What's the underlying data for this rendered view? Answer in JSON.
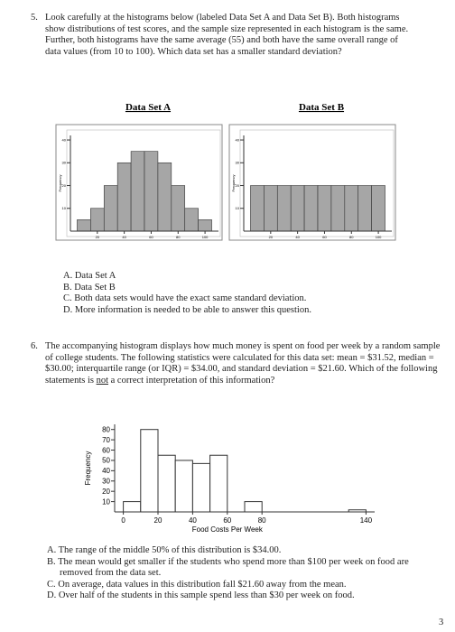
{
  "document": {
    "q5": {
      "number": "5.",
      "text": "Look carefully at the histograms below (labeled Data Set A and Data Set B). Both histograms show distributions of test scores, and the sample size represented in each histogram is the same. Further, both histograms have the same average (55) and both have the same overall range of data values (from 10 to 100). Which data set has a smaller standard deviation?",
      "options": [
        "A. Data Set A",
        "B. Data Set B",
        "C. Both data sets would have the exact same standard deviation.",
        "D. More information is needed to be able to answer this question."
      ]
    },
    "q6": {
      "number": "6.",
      "text_before": "The accompanying histogram displays how much money is spent on food per week by a random sample of college students. The following statistics were calculated for this data set: mean = $31.52, median = $30.00; interquartile range (or IQR) = $34.00, and standard deviation = $21.60. Which of the following statements is ",
      "underlined": "not",
      "text_after": " a correct interpretation of this information?",
      "options": [
        "A. The range of the middle 50% of this distribution is $34.00.",
        "B. The mean would get smaller if the students who spend more than $100 per week on food are removed from the data set.",
        "C. On average, data values in this distribution fall $21.60 away from the mean.",
        "D. Over half of the students in this sample spend less than $30 per week on food."
      ]
    },
    "page_number": "3"
  },
  "chart_data": [
    {
      "type": "histogram",
      "title": "Data Set A",
      "ylabel": "Frequency",
      "bins": [
        5,
        15,
        25,
        35,
        45,
        55,
        65,
        75,
        85,
        95,
        105
      ],
      "values": [
        5,
        10,
        20,
        30,
        35,
        35,
        30,
        20,
        10,
        5
      ],
      "color": "#a6a6a6",
      "xlim": [
        0,
        110
      ],
      "xticks": [
        20,
        40,
        60,
        80,
        100
      ],
      "ylim": [
        0,
        42
      ],
      "yticks": [
        10,
        20,
        30,
        40
      ]
    },
    {
      "type": "histogram",
      "title": "Data Set B",
      "ylabel": "Frequency",
      "bins": [
        5,
        15,
        25,
        35,
        45,
        55,
        65,
        75,
        85,
        95,
        105
      ],
      "values": [
        20,
        20,
        20,
        20,
        20,
        20,
        20,
        20,
        20,
        20
      ],
      "color": "#a6a6a6",
      "xlim": [
        0,
        110
      ],
      "xticks": [
        20,
        40,
        60,
        80,
        100
      ],
      "ylim": [
        0,
        42
      ],
      "yticks": [
        10,
        20,
        30,
        40
      ]
    },
    {
      "type": "histogram",
      "xlabel": "Food Costs Per Week",
      "ylabel": "Frequency",
      "bins": [
        0,
        10,
        20,
        30,
        40,
        50,
        60,
        70,
        80,
        90,
        100,
        110,
        120,
        130,
        140
      ],
      "values": [
        10,
        80,
        55,
        50,
        47,
        55,
        0,
        10,
        0,
        0,
        0,
        0,
        0,
        2
      ],
      "color": "#ffffff",
      "xlim": [
        -5,
        145
      ],
      "xticks": [
        0,
        20,
        40,
        60,
        80,
        140
      ],
      "ylim": [
        0,
        85
      ],
      "yticks": [
        10,
        20,
        30,
        40,
        50,
        60,
        70,
        80
      ]
    }
  ]
}
